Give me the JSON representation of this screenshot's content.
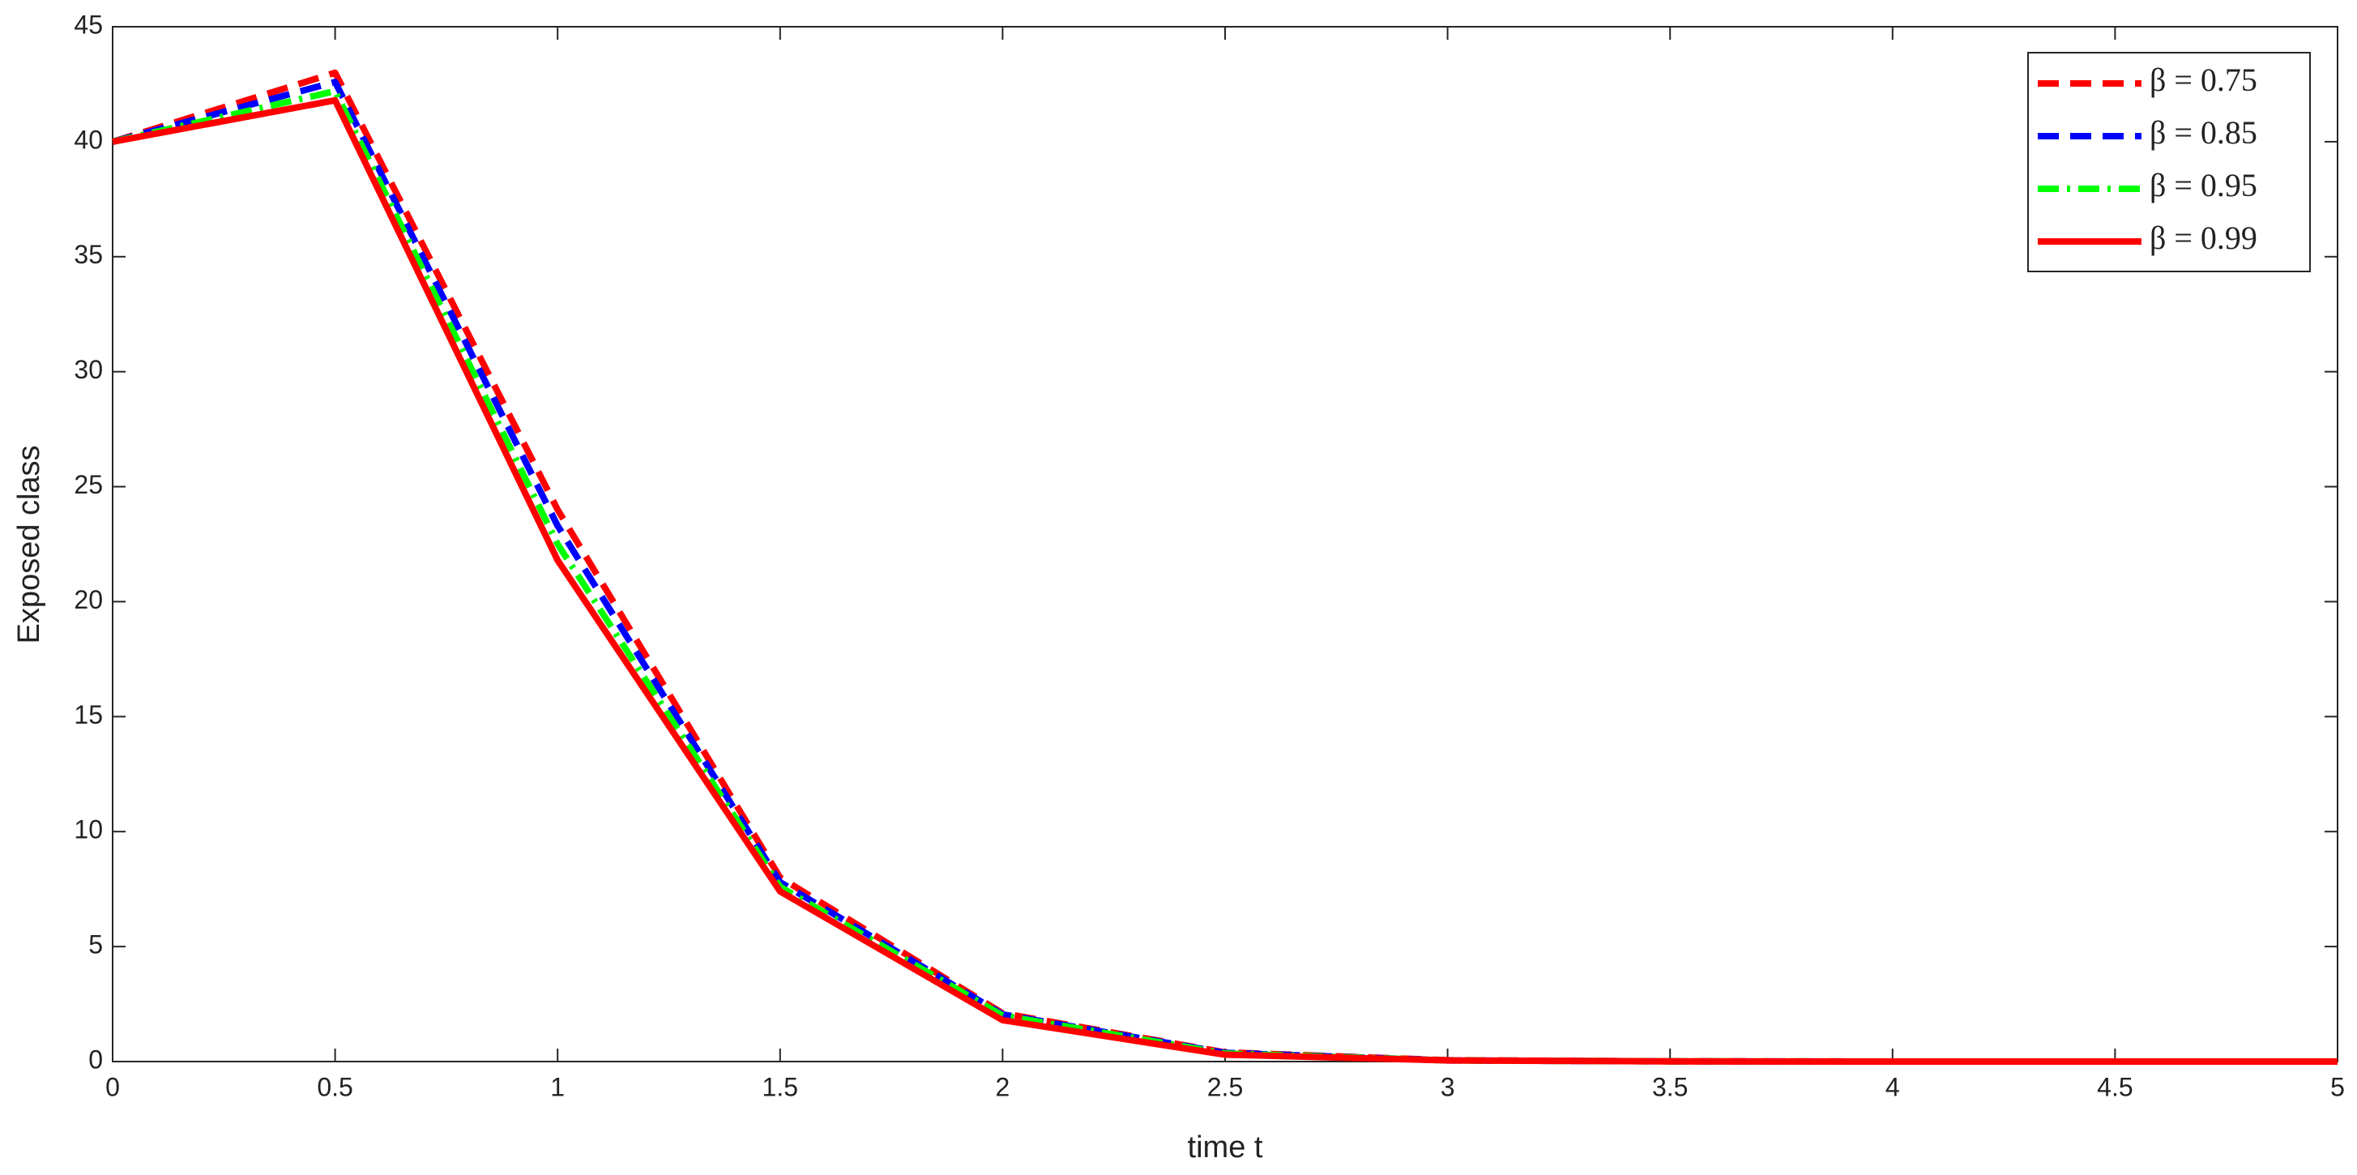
{
  "chart_data": {
    "type": "line",
    "x_label": "time t",
    "y_label": "Exposed class",
    "x": [
      0,
      0.5,
      1,
      1.5,
      2,
      2.5,
      3,
      3.5,
      4,
      4.5,
      5
    ],
    "series": [
      {
        "name": "β = 0.75",
        "color": "#ff0000",
        "line_style": "dashed",
        "values": [
          40,
          43,
          24,
          8,
          2.1,
          0.4,
          0.06,
          0.01,
          0,
          0,
          0
        ]
      },
      {
        "name": "β = 0.85",
        "color": "#0000ff",
        "line_style": "dashed",
        "values": [
          40,
          42.6,
          23.3,
          7.8,
          2.05,
          0.38,
          0.05,
          0.01,
          0,
          0,
          0
        ]
      },
      {
        "name": "β = 0.95",
        "color": "#00ff00",
        "line_style": "dash-dot",
        "values": [
          40,
          42.2,
          22.5,
          7.6,
          2.0,
          0.35,
          0.05,
          0.01,
          0,
          0,
          0
        ]
      },
      {
        "name": "β = 0.99",
        "color": "#ff0000",
        "line_style": "solid",
        "values": [
          40,
          41.8,
          21.8,
          7.4,
          1.8,
          0.3,
          0.05,
          0.01,
          0,
          0,
          0
        ]
      }
    ],
    "xlim": [
      0,
      5
    ],
    "xticks": [
      0,
      0.5,
      1,
      1.5,
      2,
      2.5,
      3,
      3.5,
      4,
      4.5,
      5
    ],
    "ylim": [
      0,
      45
    ],
    "yticks": [
      0,
      5,
      10,
      15,
      20,
      25,
      30,
      35,
      40,
      45
    ],
    "grid": false,
    "legend_position": "upper right"
  }
}
